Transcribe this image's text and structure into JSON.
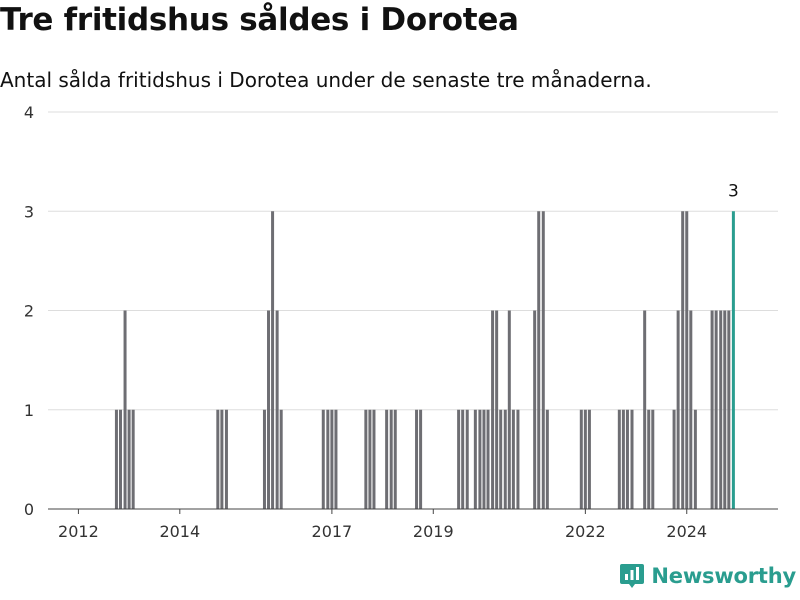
{
  "title": "Tre fritidshus såldes i Dorotea",
  "subtitle": "Antal sålda fritidshus i Dorotea under de senaste tre månaderna.",
  "brand": {
    "name": "Newsworthy"
  },
  "colors": {
    "bar": "#6e6e73",
    "highlight": "#2a9d8f",
    "grid": "#dddddd",
    "text": "#333333"
  },
  "chart_data": {
    "type": "bar",
    "x_ticks": [
      2012,
      2014,
      2017,
      2019,
      2022,
      2024
    ],
    "y_ticks": [
      0,
      1,
      2,
      3,
      4
    ],
    "ylim": [
      0,
      4
    ],
    "xlim": [
      2011.4,
      2025.8
    ],
    "bars": [
      {
        "x": 2012.75,
        "y": 1
      },
      {
        "x": 2012.83,
        "y": 1
      },
      {
        "x": 2012.92,
        "y": 2
      },
      {
        "x": 2013.0,
        "y": 1
      },
      {
        "x": 2013.08,
        "y": 1
      },
      {
        "x": 2014.75,
        "y": 1
      },
      {
        "x": 2014.83,
        "y": 1
      },
      {
        "x": 2014.92,
        "y": 1
      },
      {
        "x": 2015.67,
        "y": 1
      },
      {
        "x": 2015.75,
        "y": 2
      },
      {
        "x": 2015.83,
        "y": 3
      },
      {
        "x": 2015.92,
        "y": 2
      },
      {
        "x": 2016.0,
        "y": 1
      },
      {
        "x": 2016.83,
        "y": 1
      },
      {
        "x": 2016.92,
        "y": 1
      },
      {
        "x": 2017.0,
        "y": 1
      },
      {
        "x": 2017.08,
        "y": 1
      },
      {
        "x": 2017.67,
        "y": 1
      },
      {
        "x": 2017.75,
        "y": 1
      },
      {
        "x": 2017.83,
        "y": 1
      },
      {
        "x": 2018.08,
        "y": 1
      },
      {
        "x": 2018.17,
        "y": 1
      },
      {
        "x": 2018.25,
        "y": 1
      },
      {
        "x": 2018.67,
        "y": 1
      },
      {
        "x": 2018.75,
        "y": 1
      },
      {
        "x": 2019.5,
        "y": 1
      },
      {
        "x": 2019.58,
        "y": 1
      },
      {
        "x": 2019.67,
        "y": 1
      },
      {
        "x": 2019.83,
        "y": 1
      },
      {
        "x": 2019.92,
        "y": 1
      },
      {
        "x": 2020.0,
        "y": 1
      },
      {
        "x": 2020.08,
        "y": 1
      },
      {
        "x": 2020.17,
        "y": 2
      },
      {
        "x": 2020.25,
        "y": 2
      },
      {
        "x": 2020.33,
        "y": 1
      },
      {
        "x": 2020.42,
        "y": 1
      },
      {
        "x": 2020.5,
        "y": 2
      },
      {
        "x": 2020.58,
        "y": 1
      },
      {
        "x": 2020.67,
        "y": 1
      },
      {
        "x": 2021.0,
        "y": 2
      },
      {
        "x": 2021.08,
        "y": 3
      },
      {
        "x": 2021.17,
        "y": 3
      },
      {
        "x": 2021.25,
        "y": 1
      },
      {
        "x": 2021.92,
        "y": 1
      },
      {
        "x": 2022.0,
        "y": 1
      },
      {
        "x": 2022.08,
        "y": 1
      },
      {
        "x": 2022.67,
        "y": 1
      },
      {
        "x": 2022.75,
        "y": 1
      },
      {
        "x": 2022.83,
        "y": 1
      },
      {
        "x": 2022.92,
        "y": 1
      },
      {
        "x": 2023.17,
        "y": 2
      },
      {
        "x": 2023.25,
        "y": 1
      },
      {
        "x": 2023.33,
        "y": 1
      },
      {
        "x": 2023.75,
        "y": 1
      },
      {
        "x": 2023.83,
        "y": 2
      },
      {
        "x": 2023.92,
        "y": 3
      },
      {
        "x": 2024.0,
        "y": 3
      },
      {
        "x": 2024.08,
        "y": 2
      },
      {
        "x": 2024.17,
        "y": 1
      },
      {
        "x": 2024.5,
        "y": 2
      },
      {
        "x": 2024.58,
        "y": 2
      },
      {
        "x": 2024.67,
        "y": 2
      },
      {
        "x": 2024.75,
        "y": 2
      },
      {
        "x": 2024.83,
        "y": 2
      },
      {
        "x": 2024.92,
        "y": 3,
        "highlight": true,
        "label": "3"
      }
    ]
  }
}
